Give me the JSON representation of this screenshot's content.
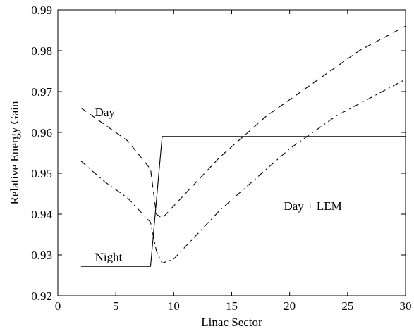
{
  "chart_data": {
    "type": "line",
    "xlabel": "Linac Sector",
    "ylabel": "Relative Energy Gain",
    "xlim": [
      0,
      30
    ],
    "ylim": [
      0.92,
      0.99
    ],
    "xticks": [
      0,
      5,
      10,
      15,
      20,
      25,
      30
    ],
    "yticks": [
      0.92,
      0.93,
      0.94,
      0.95,
      0.96,
      0.97,
      0.98,
      0.99
    ],
    "xtick_labels": [
      "0",
      "5",
      "10",
      "15",
      "20",
      "25",
      "30"
    ],
    "ytick_labels": [
      "0.92",
      "0.93",
      "0.94",
      "0.95",
      "0.96",
      "0.97",
      "0.98",
      "0.99"
    ],
    "grid": false,
    "series": [
      {
        "name": "Night",
        "style": "solid",
        "color": "#000000",
        "x": [
          2,
          8,
          9,
          30
        ],
        "y": [
          0.9272,
          0.9272,
          0.959,
          0.959
        ]
      },
      {
        "name": "Day",
        "style": "dashed",
        "color": "#000000",
        "x": [
          2,
          4,
          6,
          8,
          8.5,
          9,
          10,
          12,
          14,
          16,
          18,
          20,
          22,
          24,
          26,
          28,
          30
        ],
        "y": [
          0.966,
          0.962,
          0.958,
          0.951,
          0.94,
          0.939,
          0.942,
          0.948,
          0.954,
          0.959,
          0.964,
          0.968,
          0.972,
          0.976,
          0.98,
          0.983,
          0.986
        ]
      },
      {
        "name": "Day + LEM",
        "style": "dashdot",
        "color": "#000000",
        "x": [
          2,
          4,
          6,
          8,
          8.5,
          9,
          10,
          12,
          14,
          16,
          18,
          20,
          22,
          24,
          26,
          28,
          30
        ],
        "y": [
          0.953,
          0.948,
          0.944,
          0.938,
          0.931,
          0.928,
          0.929,
          0.935,
          0.941,
          0.946,
          0.951,
          0.956,
          0.96,
          0.964,
          0.967,
          0.97,
          0.973
        ]
      }
    ],
    "annotations": [
      {
        "text": "Day",
        "x": 3.2,
        "y": 0.964
      },
      {
        "text": "Night",
        "x": 3.2,
        "y": 0.9285
      },
      {
        "text": "Day + LEM",
        "x": 19.5,
        "y": 0.941
      }
    ]
  }
}
